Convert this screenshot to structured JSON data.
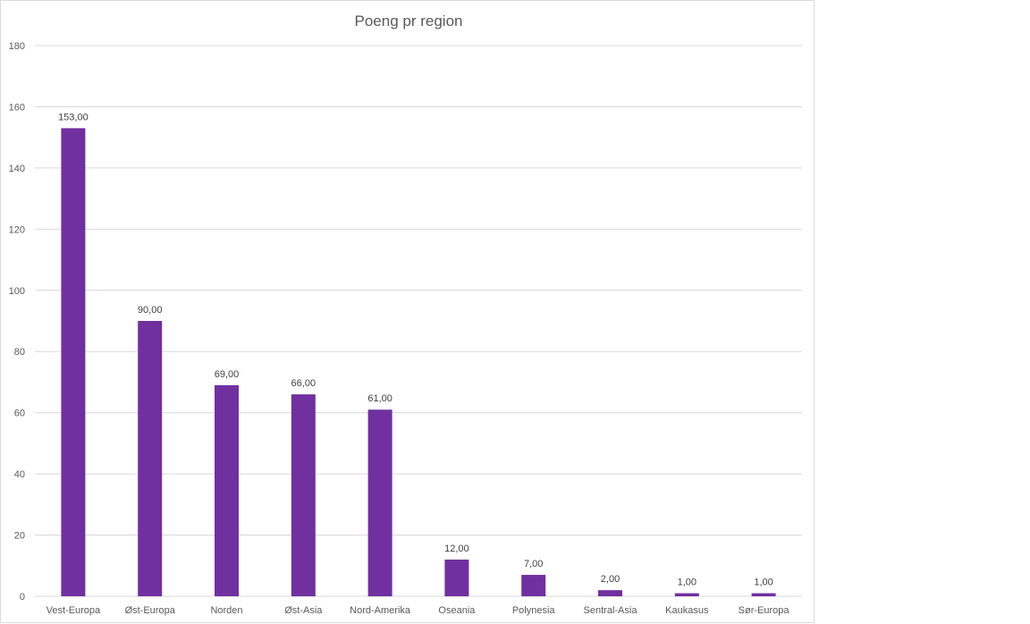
{
  "chart_data": {
    "type": "bar",
    "title": "Poeng pr region",
    "xlabel": "",
    "ylabel": "",
    "categories": [
      "Vest-Europa",
      "Øst-Europa",
      "Norden",
      "Øst-Asia",
      "Nord-Amerika",
      "Oseania",
      "Polynesia",
      "Sentral-Asia",
      "Kaukasus",
      "Sør-Europa"
    ],
    "values": [
      153,
      90,
      69,
      66,
      61,
      12,
      7,
      2,
      1,
      1
    ],
    "data_labels": [
      "153,00",
      "90,00",
      "69,00",
      "66,00",
      "61,00",
      "12,00",
      "7,00",
      "2,00",
      "1,00",
      "1,00"
    ],
    "ylim": [
      0,
      180
    ],
    "yticks": [
      "0",
      "20",
      "40",
      "60",
      "80",
      "100",
      "120",
      "140",
      "160",
      "180"
    ],
    "grid": true,
    "legend": "none",
    "bar_color": "#7030a0",
    "grid_color": "#d9d9d9"
  }
}
